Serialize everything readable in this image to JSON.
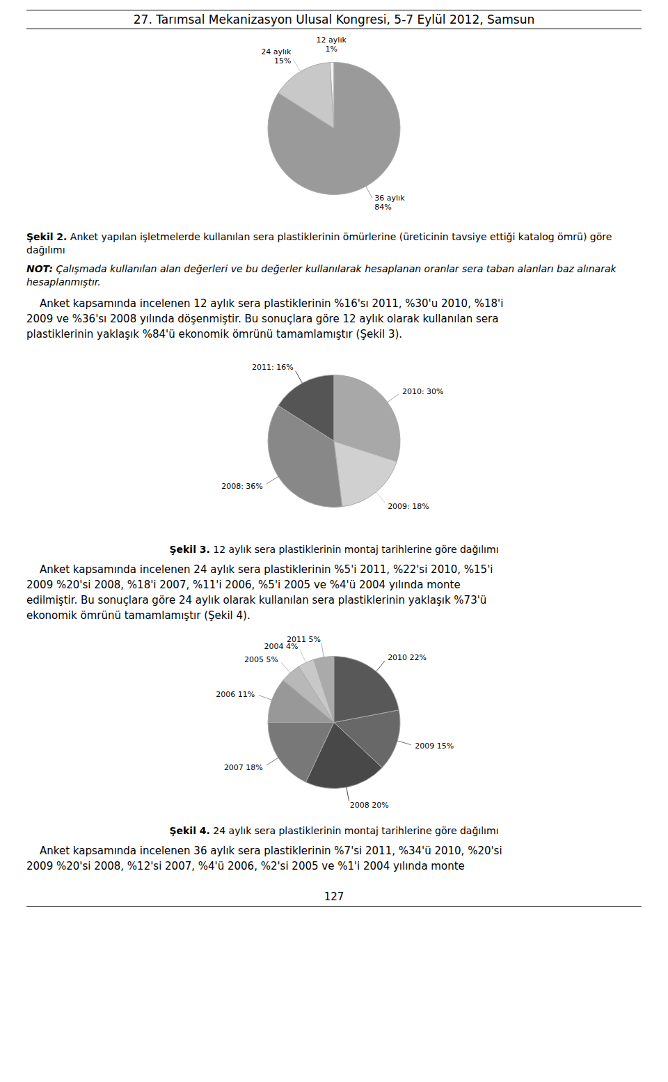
{
  "chart_data": [
    {
      "type": "pie",
      "subtitle": "27. Tarımsal Mekanizasyon Ulusal Kongresi, 5-7 Eylül 2012, Samsun",
      "title": "Şekil 2. Anket yapılan işletmelerde kullanılan sera plastiklerinin ömürlerine (üreticinin tavsiye ettiği katalog ömrü) göre dağılımı",
      "categories": [
        "12 aylık",
        "24 aylık",
        "36 aylık"
      ],
      "values": [
        1,
        15,
        84
      ],
      "value_labels": [
        "12 aylık\n1%",
        "24 aylık\n15%",
        "36 aylık\n84%"
      ],
      "colors": [
        "#f2f2f2",
        "#c8c8c8",
        "#9a9a9a"
      ],
      "data_labels": true,
      "annotations": [
        "NOT: Çalışmada kullanılan alan değerleri ve bu değerler kullanılarak hesaplanan oranlar sera taban alanları baz alınarak hesaplanmıştır.",
        "    Anket kapsamında incelenen 12 aylık sera plastiklerinin %16'sı 2011, %30'u 2010, %18'i",
        "2009 ve %36'sı 2008 yılında döşenmiştir. Bu sonuçlara göre 12 aylık olarak kullanılan sera",
        "plastiklerinin yaklaşık %84'ü ekonomik ömrünü tamamlamıştır (Şekil 3)."
      ]
    },
    {
      "type": "pie",
      "title": "Şekil 3. 12 aylık sera plastiklerinin montaj tarihlerine göre dağılımı",
      "categories": [
        "2011",
        "2008",
        "2009",
        "2010"
      ],
      "values": [
        16,
        36,
        18,
        30
      ],
      "value_labels": [
        "2011: 16%",
        "2008: 36%",
        "2009: 18%",
        "2010: 30%"
      ],
      "colors": [
        "#555555",
        "#888888",
        "#d0d0d0",
        "#a8a8a8"
      ],
      "data_labels": true,
      "annotations": [
        "    Anket kapsamında incelenen 24 aylık sera plastiklerinin %5'i 2011, %22'si 2010, %15'i",
        "2009 %20'si 2008, %18'i 2007, %11'i 2006, %5'i 2005 ve %4'ü 2004 yılında monte",
        "edilmiştir. Bu sonuçlara göre 24 aylık olarak kullanılan sera plastiklerinin yaklaşık %73'ü",
        "ekonomik ömrünü tamamlamıştır (Şekil 4)."
      ]
    },
    {
      "type": "pie",
      "title": "Şekil 4. 24 aylık sera plastiklerinin montaj tarihlerine göre dağılımı",
      "categories": [
        "2011",
        "2004",
        "2005",
        "2006",
        "2007",
        "2008",
        "2009",
        "2010"
      ],
      "values": [
        5,
        4,
        5,
        11,
        18,
        20,
        15,
        22
      ],
      "value_labels": [
        "2011 5%",
        "2004 4%",
        "2005 5%",
        "2006 11%",
        "2007 18%",
        "2008 20%",
        "2009 15%",
        "2010 22%"
      ],
      "colors": [
        "#aaaaaa",
        "#c8c8c8",
        "#b8b8b8",
        "#989898",
        "#787878",
        "#484848",
        "#686868",
        "#585858"
      ],
      "data_labels": true,
      "annotations": [
        "    Anket kapsamında incelenen 36 aylık sera plastiklerinin %7'si 2011, %34'ü 2010, %20'si",
        "2009 %20'si 2008, %12'si 2007, %4'ü 2006, %2'si 2005 ve %1'i 2004 yılında monte",
        "127"
      ]
    }
  ]
}
